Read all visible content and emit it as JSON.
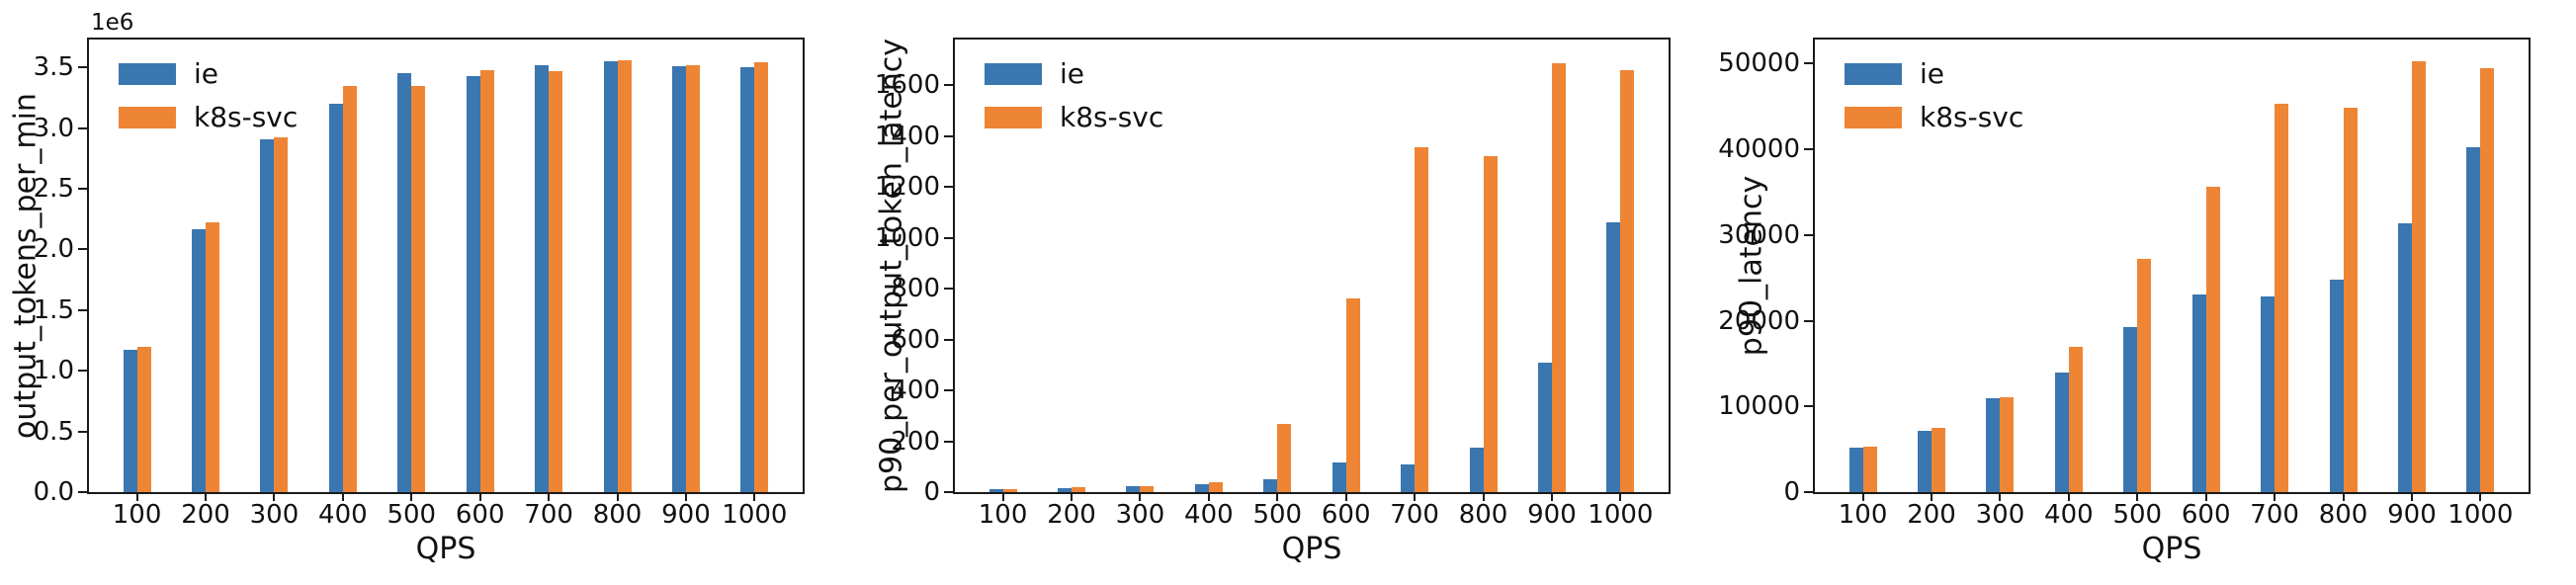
{
  "figure": {
    "background": "#ffffff",
    "axis_color": "#1a1a1a"
  },
  "chart_data": [
    {
      "type": "bar",
      "ylabel": "output_tokens_per_min",
      "xlabel": "QPS",
      "offset_text": "1e6",
      "categories": [
        "100",
        "200",
        "300",
        "400",
        "500",
        "600",
        "700",
        "800",
        "900",
        "1000"
      ],
      "ylim": [
        0,
        3730000
      ],
      "grid": false,
      "legend_position": "upper left",
      "yticks": [
        {
          "value": 0,
          "label": "0.0"
        },
        {
          "value": 500000,
          "label": "0.5"
        },
        {
          "value": 1000000,
          "label": "1.0"
        },
        {
          "value": 1500000,
          "label": "1.5"
        },
        {
          "value": 2000000,
          "label": "2.0"
        },
        {
          "value": 2500000,
          "label": "2.5"
        },
        {
          "value": 3000000,
          "label": "3.0"
        },
        {
          "value": 3500000,
          "label": "3.5"
        }
      ],
      "series": [
        {
          "name": "ie",
          "color": "#3a76b0",
          "values": [
            1170000,
            2170000,
            2910000,
            3200000,
            3450000,
            3430000,
            3520000,
            3550000,
            3510000,
            3500000
          ]
        },
        {
          "name": "k8s-svc",
          "color": "#ee8535",
          "values": [
            1200000,
            2220000,
            2920000,
            3350000,
            3350000,
            3480000,
            3470000,
            3560000,
            3520000,
            3540000
          ]
        }
      ]
    },
    {
      "type": "bar",
      "ylabel": "p90_per_output_token_latency",
      "xlabel": "QPS",
      "offset_text": "",
      "categories": [
        "100",
        "200",
        "300",
        "400",
        "500",
        "600",
        "700",
        "800",
        "900",
        "1000"
      ],
      "ylim": [
        0,
        1780
      ],
      "grid": false,
      "legend_position": "upper left",
      "yticks": [
        {
          "value": 0,
          "label": "0"
        },
        {
          "value": 200,
          "label": "200"
        },
        {
          "value": 400,
          "label": "400"
        },
        {
          "value": 600,
          "label": "600"
        },
        {
          "value": 800,
          "label": "800"
        },
        {
          "value": 1000,
          "label": "1000"
        },
        {
          "value": 1200,
          "label": "1200"
        },
        {
          "value": 1400,
          "label": "1400"
        },
        {
          "value": 1600,
          "label": "1600"
        }
      ],
      "series": [
        {
          "name": "ie",
          "color": "#3a76b0",
          "values": [
            10,
            17,
            24,
            33,
            50,
            115,
            107,
            176,
            510,
            1060
          ]
        },
        {
          "name": "k8s-svc",
          "color": "#ee8535",
          "values": [
            10,
            18,
            25,
            38,
            268,
            760,
            1358,
            1320,
            1685,
            1660
          ]
        }
      ]
    },
    {
      "type": "bar",
      "ylabel": "p90_latency",
      "xlabel": "QPS",
      "offset_text": "",
      "categories": [
        "100",
        "200",
        "300",
        "400",
        "500",
        "600",
        "700",
        "800",
        "900",
        "1000"
      ],
      "ylim": [
        0,
        52800
      ],
      "grid": false,
      "legend_position": "upper left",
      "yticks": [
        {
          "value": 0,
          "label": "0"
        },
        {
          "value": 10000,
          "label": "10000"
        },
        {
          "value": 20000,
          "label": "20000"
        },
        {
          "value": 30000,
          "label": "30000"
        },
        {
          "value": 40000,
          "label": "40000"
        },
        {
          "value": 50000,
          "label": "50000"
        }
      ],
      "series": [
        {
          "name": "ie",
          "color": "#3a76b0",
          "values": [
            5200,
            7200,
            10950,
            13900,
            19200,
            23100,
            22800,
            24800,
            31350,
            40200
          ]
        },
        {
          "name": "k8s-svc",
          "color": "#ee8535",
          "values": [
            5300,
            7550,
            11100,
            16900,
            27200,
            35600,
            45300,
            44800,
            50300,
            49400
          ]
        }
      ]
    }
  ]
}
